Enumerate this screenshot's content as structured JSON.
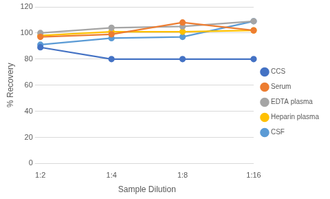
{
  "chart_data": {
    "type": "line",
    "x_label": "Sample Dilution",
    "y_label": "% Recovery",
    "categories": [
      "1:2",
      "1:4",
      "1:8",
      "1:16"
    ],
    "series": [
      {
        "name": "CCS",
        "color": "#4472c4",
        "values": [
          89,
          80,
          80,
          80
        ]
      },
      {
        "name": "Serum",
        "color": "#ed7d31",
        "values": [
          97,
          99,
          108,
          102
        ]
      },
      {
        "name": "EDTA plasma",
        "color": "#a5a5a5",
        "values": [
          100,
          104,
          105,
          109
        ]
      },
      {
        "name": "Heparin plasma",
        "color": "#ffc000",
        "values": [
          98,
          101,
          101,
          102
        ]
      },
      {
        "name": "CSF",
        "color": "#5b9bd5",
        "values": [
          91,
          96,
          97,
          109
        ]
      }
    ],
    "ylim": [
      0,
      120
    ],
    "yticks": [
      0,
      20,
      40,
      60,
      80,
      100,
      120
    ],
    "grid": true,
    "legend": "right",
    "marker": "circle",
    "line_style": "solid"
  }
}
